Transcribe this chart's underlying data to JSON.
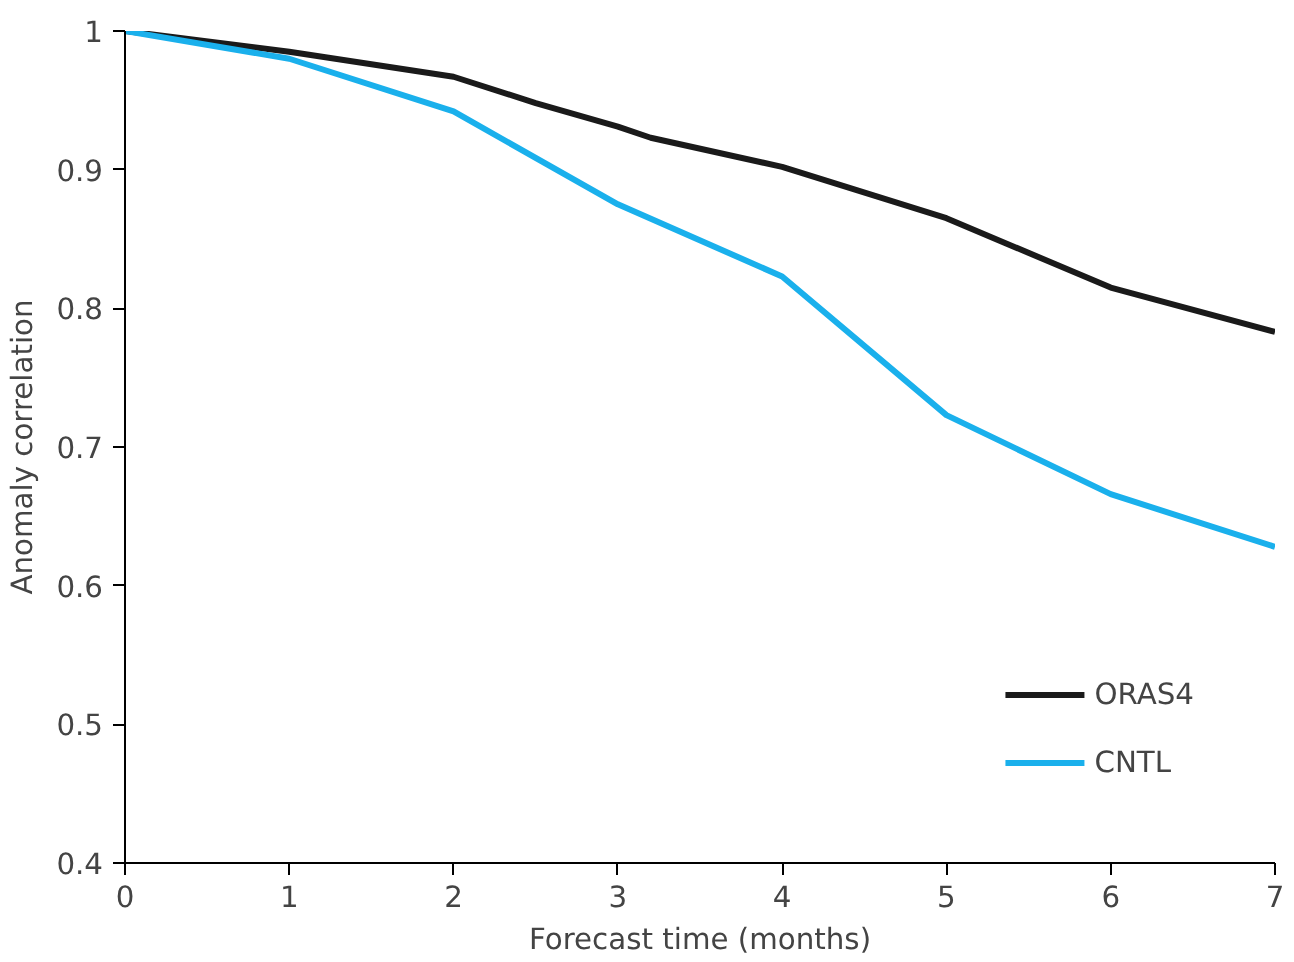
{
  "chart_data": {
    "type": "line",
    "xlabel": "Forecast time (months)",
    "ylabel": "Anomaly correlation",
    "xlim": [
      0,
      7
    ],
    "ylim": [
      0.4,
      1
    ],
    "xticks": [
      0,
      1,
      2,
      3,
      4,
      5,
      6,
      7
    ],
    "yticks": [
      0.4,
      0.5,
      0.6,
      0.7,
      0.8,
      0.9,
      1
    ],
    "grid": false,
    "legend": "bottom right",
    "line_style": "solid",
    "series": [
      {
        "name": "ORAS4",
        "color": "#1a1a1a",
        "x": [
          0,
          1,
          2,
          2.5,
          3,
          3.2,
          4,
          5,
          6,
          7
        ],
        "values": [
          1.0,
          0.985,
          0.967,
          0.948,
          0.931,
          0.923,
          0.902,
          0.865,
          0.815,
          0.783
        ]
      },
      {
        "name": "CNTL",
        "color": "#1ab0ec",
        "x": [
          0,
          1,
          2,
          3,
          4,
          5,
          6,
          7
        ],
        "values": [
          1.0,
          0.98,
          0.942,
          0.875,
          0.823,
          0.723,
          0.666,
          0.628
        ]
      }
    ]
  }
}
